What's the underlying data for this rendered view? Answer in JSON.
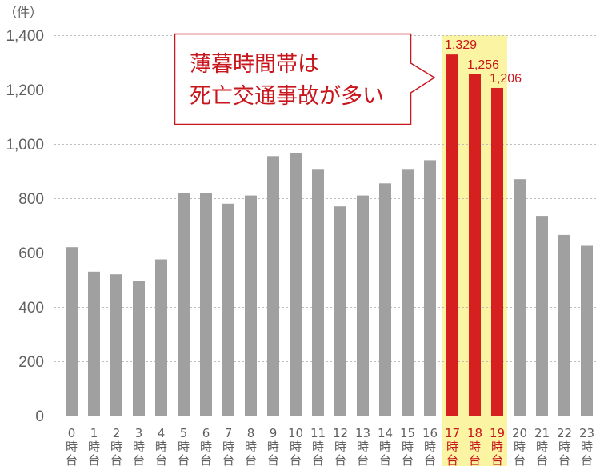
{
  "chart_data": {
    "type": "bar",
    "ylabel": "（件）",
    "categories": [
      "0時台",
      "1時台",
      "2時台",
      "3時台",
      "4時台",
      "5時台",
      "6時台",
      "7時台",
      "8時台",
      "9時台",
      "10時台",
      "11時台",
      "12時台",
      "13時台",
      "14時台",
      "15時台",
      "16時台",
      "17時台",
      "18時台",
      "19時台",
      "20時台",
      "21時台",
      "22時台",
      "23時台"
    ],
    "values": [
      620,
      530,
      520,
      495,
      575,
      820,
      820,
      780,
      810,
      955,
      965,
      905,
      770,
      810,
      855,
      905,
      940,
      1329,
      1256,
      1206,
      870,
      735,
      665,
      625
    ],
    "ylim": [
      0,
      1400
    ],
    "yticks": [
      0,
      200,
      400,
      600,
      800,
      1000,
      1200,
      1400
    ],
    "ytick_labels": [
      "0",
      "200",
      "400",
      "600",
      "800",
      "1,000",
      "1,200",
      "1,400"
    ],
    "grid": true,
    "highlight_categories": [
      "17時台",
      "18時台",
      "19時台"
    ],
    "data_labels": [
      {
        "category": "17時台",
        "text": "1,329"
      },
      {
        "category": "18時台",
        "text": "1,256"
      },
      {
        "category": "19時台",
        "text": "1,206"
      }
    ],
    "annotation": {
      "lines": [
        "薄暮時間帯は",
        "死亡交通事故が多い"
      ]
    },
    "colors": {
      "bar": "#a0a0a0",
      "highlight_bar": "#d6201f",
      "highlight_band": "#fbf5a3",
      "highlight_text": "#c8161d",
      "axis_text": "#5f5f5f",
      "grid": "#bdbdbd",
      "callout_border": "#c8161d",
      "callout_text": "#c8161d"
    }
  }
}
